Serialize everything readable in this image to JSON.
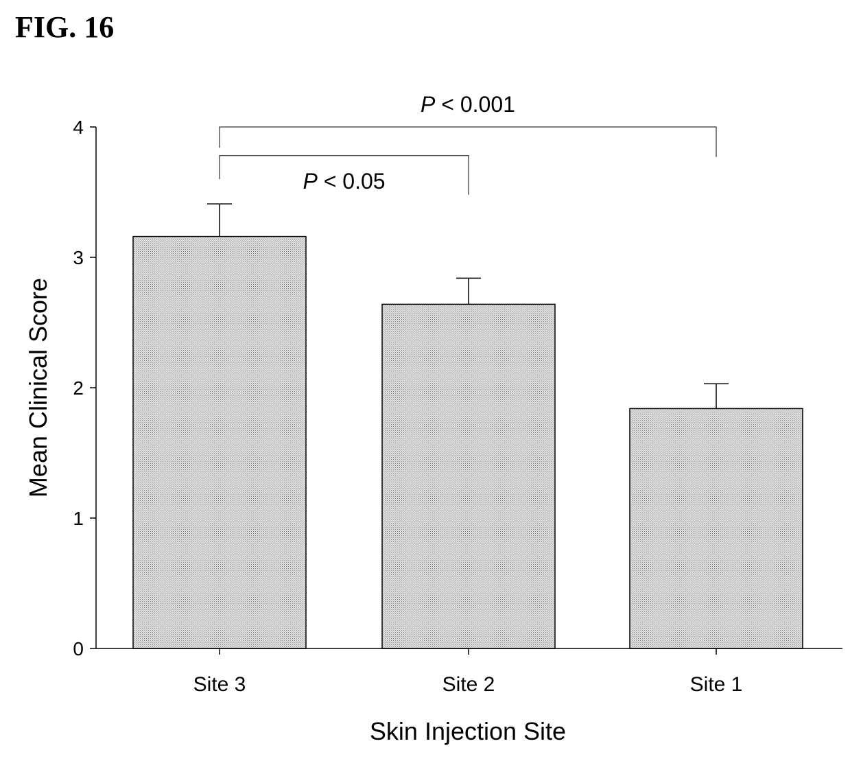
{
  "figure_label": "FIG. 16",
  "chart_data": {
    "type": "bar",
    "categories": [
      "Site 3",
      "Site 2",
      "Site 1"
    ],
    "values": [
      3.16,
      2.64,
      1.84
    ],
    "errors": [
      0.25,
      0.2,
      0.19
    ],
    "xlabel": "Skin Injection Site",
    "ylabel": "Mean Clinical Score",
    "ylim": [
      0,
      4
    ],
    "yticks": [
      0,
      1,
      2,
      3,
      4
    ],
    "grid": false,
    "bar_fill": "#c8c8c8",
    "annotations": [
      {
        "from": 0,
        "to": 2,
        "label_prefix": "P",
        "label_suffix": " < 0.001",
        "level": 4.0,
        "end_left": 3.84,
        "end_right": 3.77,
        "label_pos": "above"
      },
      {
        "from": 0,
        "to": 1,
        "label_prefix": "P",
        "label_suffix": " < 0.05",
        "level": 3.78,
        "end_left": 3.6,
        "end_right": 3.48,
        "label_pos": "below"
      }
    ]
  }
}
